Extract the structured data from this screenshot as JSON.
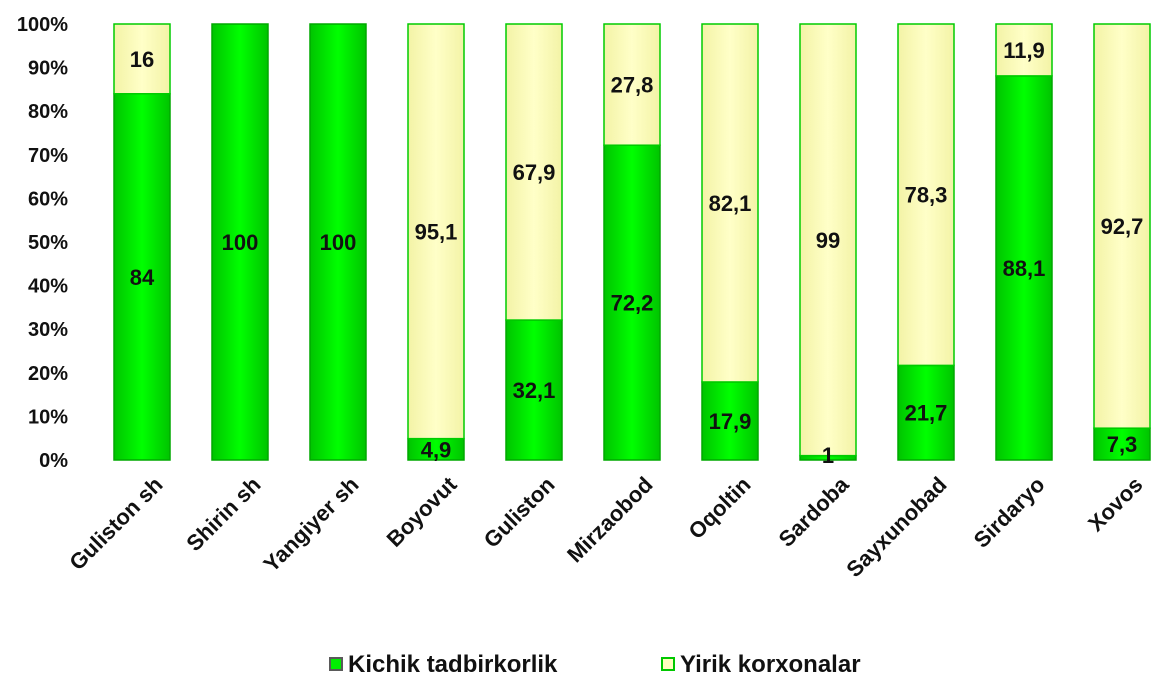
{
  "chart_data": {
    "type": "bar",
    "stacked": true,
    "percent_stacked": true,
    "categories": [
      "Guliston sh",
      "Shirin sh",
      "Yangiyer sh",
      "Boyovut",
      "Guliston",
      "Mirzaobod",
      "Oqoltin",
      "Sardoba",
      "Sayxunobad",
      "Sirdaryo",
      "Xovos"
    ],
    "series": [
      {
        "name": "Kichik tadbirkorlik",
        "color": "#00ee00",
        "values": [
          84,
          100,
          100,
          4.9,
          32.1,
          72.2,
          17.9,
          1,
          21.7,
          88.1,
          7.3
        ],
        "labels": [
          "84",
          "100",
          "100",
          "4,9",
          "32,1",
          "72,2",
          "17,9",
          "1",
          "21,7",
          "88,1",
          "7,3"
        ]
      },
      {
        "name": "Yirik korxonalar",
        "color": "#ffffc0",
        "values": [
          16,
          0,
          0,
          95.1,
          67.9,
          27.8,
          82.1,
          99,
          78.3,
          11.9,
          92.7
        ],
        "labels": [
          "16",
          "",
          "",
          "95,1",
          "67,9",
          "27,8",
          "82,1",
          "99",
          "78,3",
          "11,9",
          "92,7"
        ]
      }
    ],
    "y_ticks": [
      "0%",
      "10%",
      "20%",
      "30%",
      "40%",
      "50%",
      "60%",
      "70%",
      "80%",
      "90%",
      "100%"
    ],
    "ylim": [
      0,
      100
    ],
    "grid": false,
    "legend_position": "bottom",
    "title": "",
    "xlabel": "",
    "ylabel": ""
  }
}
